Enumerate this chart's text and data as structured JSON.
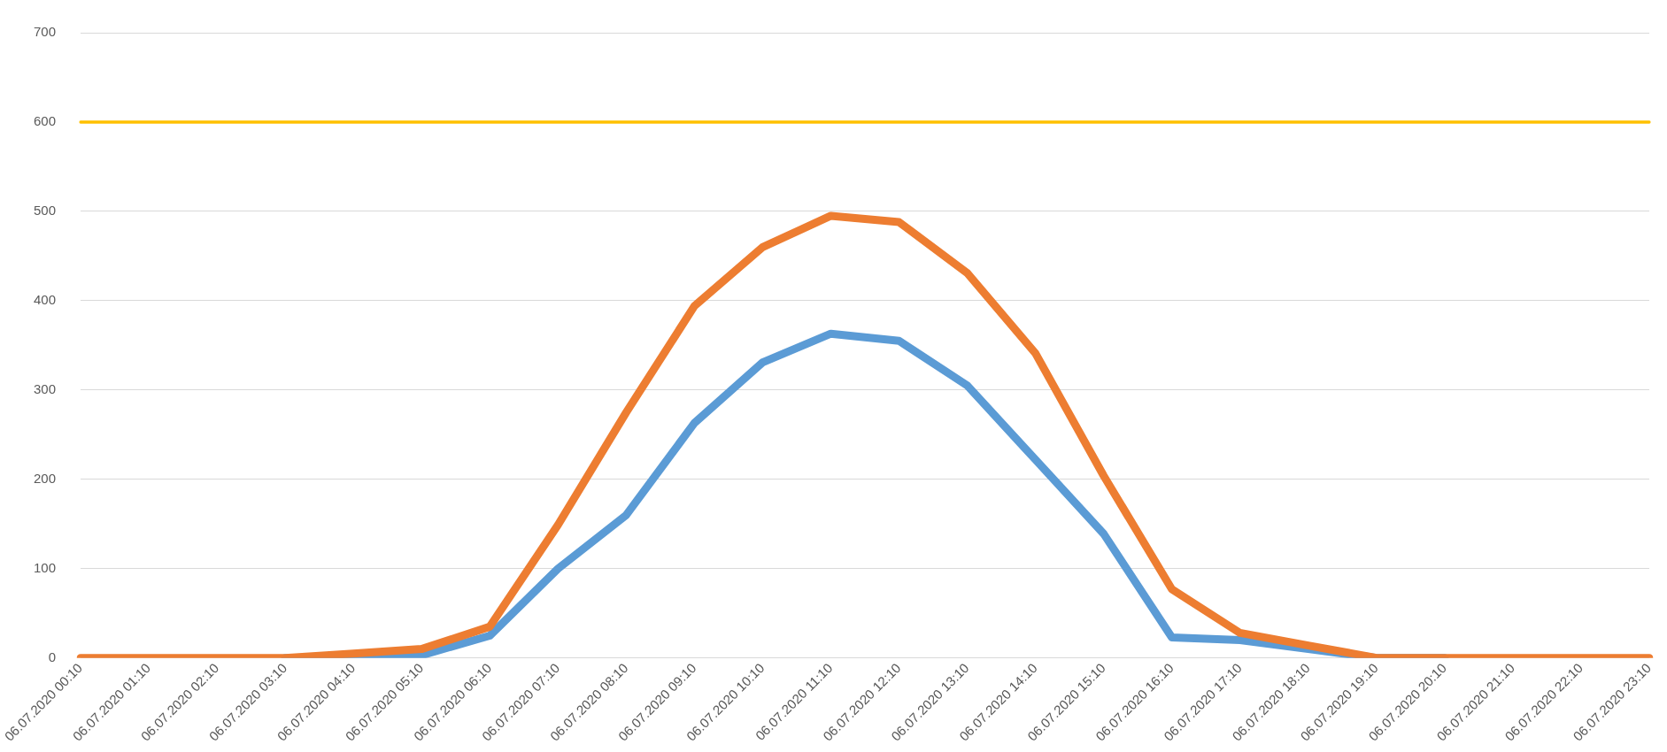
{
  "chart_data": {
    "type": "line",
    "categories": [
      "06.07.2020 00:10",
      "06.07.2020 01:10",
      "06.07.2020 02:10",
      "06.07.2020 03:10",
      "06.07.2020 04:10",
      "06.07.2020 05:10",
      "06.07.2020 06:10",
      "06.07.2020 07:10",
      "06.07.2020 08:10",
      "06.07.2020 09:10",
      "06.07.2020 10:10",
      "06.07.2020 11:10",
      "06.07.2020 12:10",
      "06.07.2020 13:10",
      "06.07.2020 14:10",
      "06.07.2020 15:10",
      "06.07.2020 16:10",
      "06.07.2020 17:10",
      "06.07.2020 18:10",
      "06.07.2020 19:10",
      "06.07.2020 20:10",
      "06.07.2020 21:10",
      "06.07.2020 22:10",
      "06.07.2020 23:10"
    ],
    "series": [
      {
        "color": "#ffc000",
        "values": [
          600,
          600,
          600,
          600,
          600,
          600,
          600,
          600,
          600,
          600,
          600,
          600,
          600,
          600,
          600,
          600,
          600,
          600,
          600,
          600,
          600,
          600,
          600,
          600
        ]
      },
      {
        "color": "#5b9bd5",
        "values": [
          null,
          null,
          null,
          0,
          0,
          3,
          25,
          100,
          160,
          263,
          331,
          363,
          355,
          305,
          222,
          139,
          23,
          20,
          10,
          0,
          0,
          null,
          null,
          null
        ]
      },
      {
        "color": "#ed7d31",
        "values": [
          0,
          0,
          0,
          0,
          5,
          10,
          35,
          149,
          275,
          394,
          460,
          495,
          488,
          431,
          341,
          204,
          77,
          28,
          14,
          0,
          0,
          0,
          0,
          0
        ]
      }
    ],
    "ylim": [
      0,
      700
    ],
    "yticks": [
      0,
      100,
      200,
      300,
      400,
      500,
      600,
      700
    ],
    "grid": "y",
    "marker": "none",
    "line_style": "solid"
  }
}
